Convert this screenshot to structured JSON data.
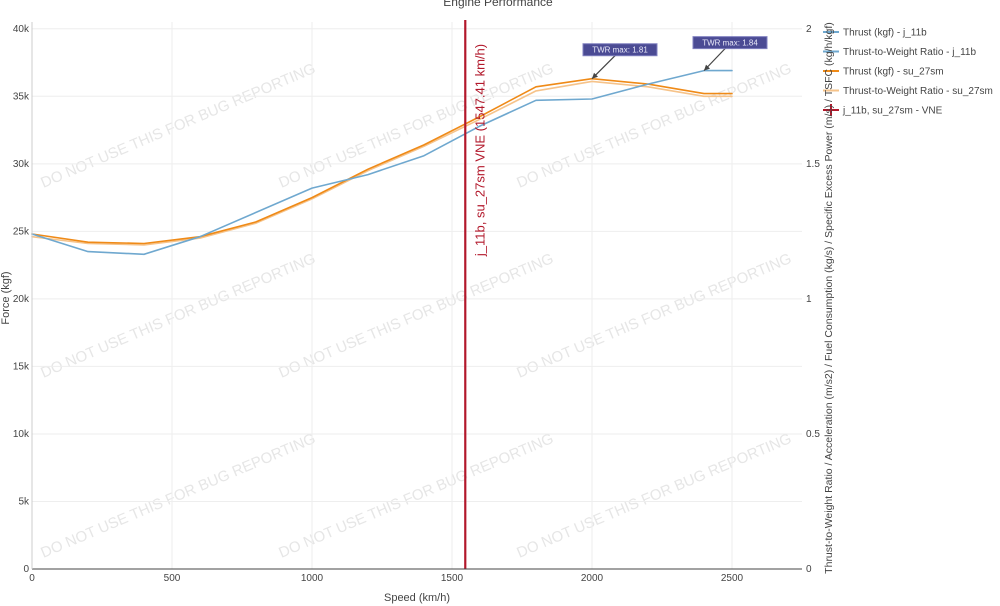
{
  "chart_data": {
    "type": "line",
    "title": "Engine Performance",
    "xlabel": "Speed (km/h)",
    "ylabel": "Force (kgf)",
    "y2label": "Thrust-to-Weight Ratio / Acceleration (m/s2) / Fuel Consumption (kg/s) / Specific Excess Power (m/s) / TSFC (kg/h/kgf)",
    "xlim": [
      0,
      2750
    ],
    "ylim": [
      0,
      40500
    ],
    "y2lim": [
      0,
      2.025
    ],
    "x_ticks": [
      0,
      500,
      1000,
      1500,
      2000,
      2500
    ],
    "x_tick_labels": [
      "0",
      "500",
      "1000",
      "1500",
      "2000",
      "2500"
    ],
    "y_ticks": [
      0,
      5000,
      10000,
      15000,
      20000,
      25000,
      30000,
      35000,
      40000
    ],
    "y_tick_labels": [
      "0",
      "5k",
      "10k",
      "15k",
      "20k",
      "25k",
      "30k",
      "35k",
      "40k"
    ],
    "y2_ticks": [
      0,
      0.5,
      1,
      1.5,
      2
    ],
    "y2_tick_labels": [
      "0",
      "0.5",
      "1",
      "1.5",
      "2"
    ],
    "grid": true,
    "legend_position": "right",
    "series": [
      {
        "name": "Thrust (kgf) - j_11b",
        "axis": "y",
        "color": "#6fa8cf",
        "width": 1.6,
        "x": [
          0,
          200,
          400,
          600,
          1000,
          1200,
          1400,
          1600,
          1800,
          2000,
          2200,
          2400,
          2500
        ],
        "y": [
          24800,
          23500,
          23300,
          24600,
          28200,
          29200,
          30600,
          32800,
          34700,
          34800,
          35900,
          36900,
          36900
        ]
      },
      {
        "name": "Thrust-to-Weight Ratio - j_11b",
        "axis": "y2",
        "color": "#6fa8cf",
        "width": 1.2,
        "x": [],
        "y": []
      },
      {
        "name": "Thrust (kgf) - su_27sm",
        "axis": "y",
        "color": "#ef8a17",
        "width": 1.6,
        "x": [
          0,
          200,
          400,
          600,
          800,
          1000,
          1200,
          1400,
          1600,
          1800,
          2000,
          2200,
          2400,
          2500
        ],
        "y": [
          24800,
          24200,
          24100,
          24600,
          25700,
          27500,
          29600,
          31400,
          33500,
          35700,
          36300,
          35900,
          35200,
          35200
        ]
      },
      {
        "name": "Thrust-to-Weight Ratio - su_27sm",
        "axis": "y2",
        "color": "#f6c38a",
        "width": 1.6,
        "x": [
          0,
          200,
          400,
          600,
          800,
          1000,
          1200,
          1400,
          1600,
          1800,
          2000,
          2200,
          2400,
          2500
        ],
        "y": [
          1.23,
          1.205,
          1.2,
          1.225,
          1.28,
          1.37,
          1.475,
          1.565,
          1.665,
          1.77,
          1.805,
          1.785,
          1.75,
          1.75
        ]
      }
    ],
    "vlines": [
      {
        "name": "j_11b, su_27sm - VNE",
        "x": 1547.41,
        "label": "j_11b, su_27sm VNE (1547.41 km/h)",
        "color": "#b2182b"
      }
    ],
    "annotations": [
      {
        "text": "TWR max: 1.81",
        "x": 2000,
        "y": 36300
      },
      {
        "text": "TWR max: 1.84",
        "x": 2400,
        "y": 36900
      }
    ],
    "watermark": "DO NOT USE THIS FOR BUG REPORTING"
  }
}
